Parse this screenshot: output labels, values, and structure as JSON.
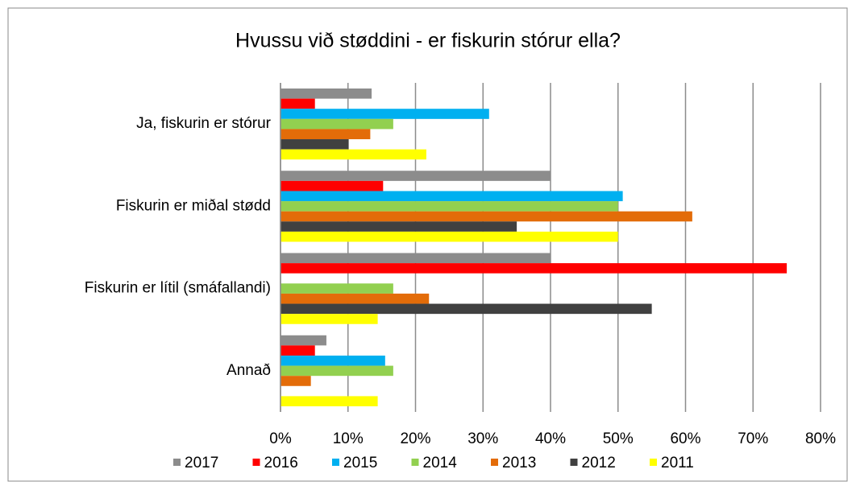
{
  "chart_data": {
    "type": "hbar",
    "title": "Hvussu  við støddini - er fiskurin stórur ella?",
    "categories": [
      "Ja, fiskurin er stórur",
      "Fiskurin er miðal stødd",
      "Fiskurin er lítil (smáfallandi)",
      "Annað"
    ],
    "series": [
      {
        "name": "2017",
        "color": "#8c8c8c",
        "values": [
          13.5,
          40,
          40,
          6.8
        ]
      },
      {
        "name": "2016",
        "color": "#ff0000",
        "values": [
          5.1,
          15.2,
          75,
          5.1
        ]
      },
      {
        "name": "2015",
        "color": "#00b0f0",
        "values": [
          30.9,
          50.7,
          null,
          15.5
        ]
      },
      {
        "name": "2014",
        "color": "#92d050",
        "values": [
          16.7,
          50,
          16.7,
          16.7
        ]
      },
      {
        "name": "2013",
        "color": "#e36c09",
        "values": [
          13.3,
          61,
          22,
          4.5
        ]
      },
      {
        "name": "2012",
        "color": "#404040",
        "values": [
          10.1,
          35,
          55,
          null
        ]
      },
      {
        "name": "2011",
        "color": "#ffff00",
        "values": [
          21.6,
          50,
          14.4,
          14.4
        ]
      }
    ],
    "xlim": [
      0,
      80
    ],
    "xticks": [
      {
        "value": 0,
        "label": "0%"
      },
      {
        "value": 10,
        "label": "10%"
      },
      {
        "value": 20,
        "label": "20%"
      },
      {
        "value": 30,
        "label": "30%"
      },
      {
        "value": 40,
        "label": "40%"
      },
      {
        "value": 50,
        "label": "50%"
      },
      {
        "value": 60,
        "label": "60%"
      },
      {
        "value": 70,
        "label": "70%"
      },
      {
        "value": 80,
        "label": "80%"
      }
    ],
    "grid": true,
    "legend": "bottom"
  }
}
